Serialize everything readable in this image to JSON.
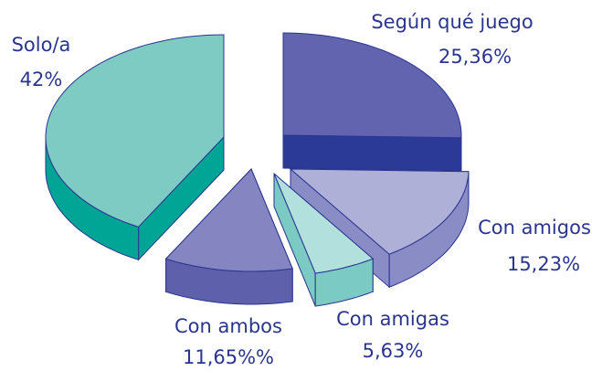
{
  "chart_data": {
    "type": "pie",
    "categories": [
      "Según qué juego",
      "Con amigos",
      "Con amigas",
      "Con ambos",
      "Solo/a"
    ],
    "values": [
      25.36,
      15.23,
      5.63,
      11.65,
      42
    ],
    "value_labels": [
      "25,36%",
      "15,23%",
      "5,63%",
      "11,65%%",
      "42%"
    ],
    "colors": [
      "#6264b0",
      "#afb0d8",
      "#b2e0dc",
      "#8585c2",
      "#7ecbc4"
    ],
    "side_colors": [
      "#2b3a96",
      "#8a8cc6",
      "#7ccac4",
      "#5f60ac",
      "#00a595"
    ]
  }
}
